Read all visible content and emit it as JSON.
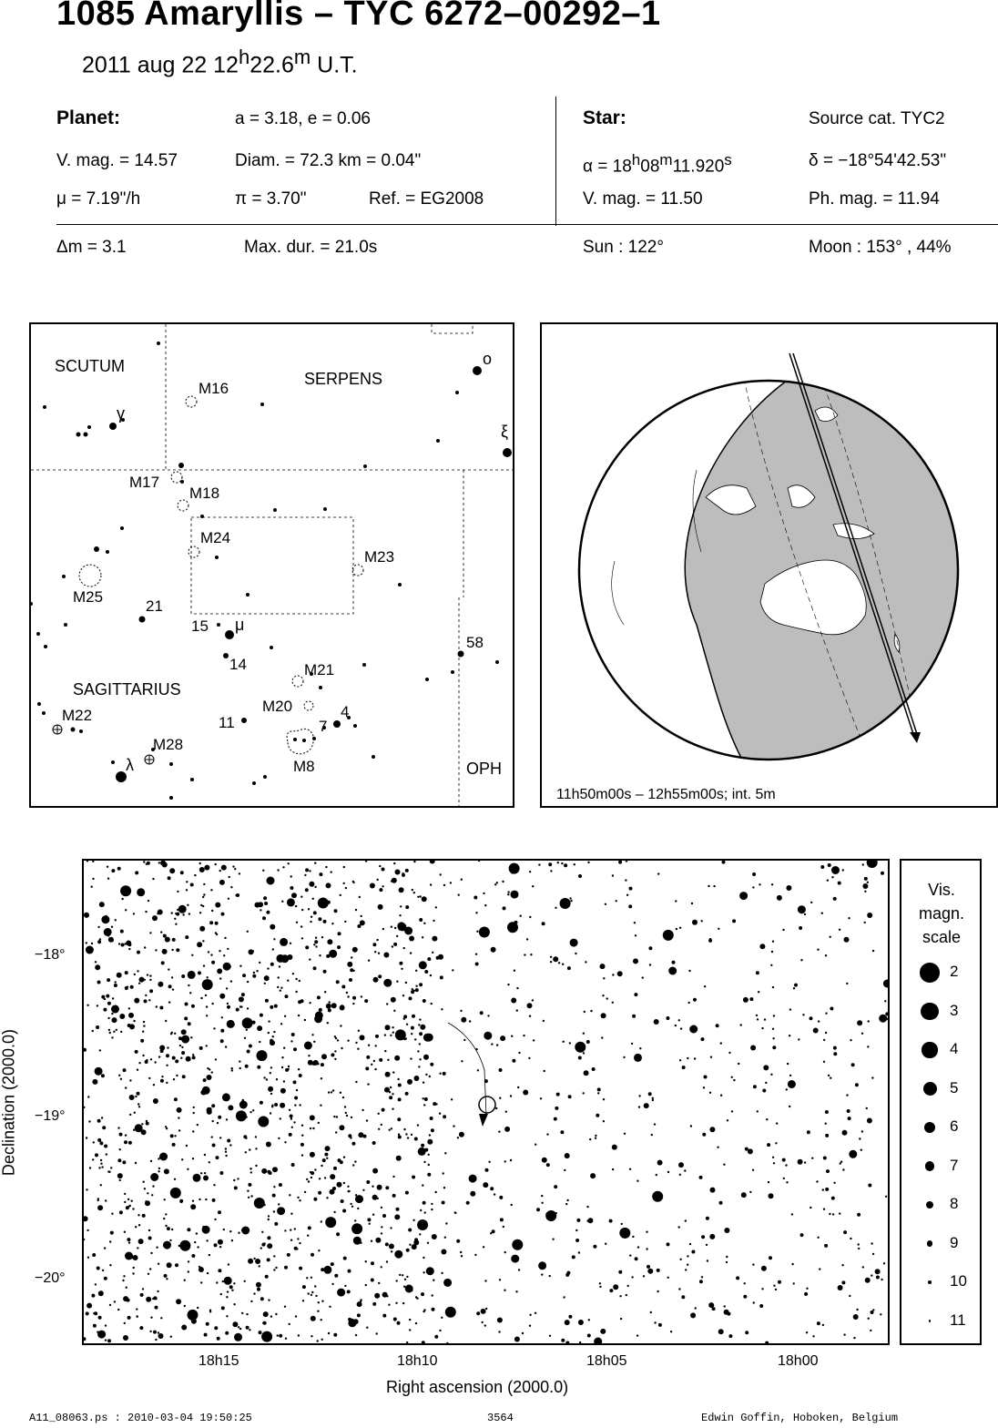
{
  "header": {
    "title": "1085 Amaryllis  –  TYC 6272–00292–1",
    "date": "2011 aug 22  12",
    "hour_sup": "h",
    "minutes": "22.6",
    "min_sup": "m",
    "ut": " U.T."
  },
  "planet": {
    "heading": "Planet:",
    "orbit": "a = 3.18, e = 0.06",
    "vmag": "V. mag. = 14.57",
    "diam": "Diam. = 72.3 km = 0.04\"",
    "mu": "μ =  7.19\"/h",
    "pi": "π =  3.70\"",
    "ref": "Ref. = EG2008"
  },
  "star": {
    "heading": "Star:",
    "source": "Source cat.  TYC2",
    "ra_prefix": "α = 18",
    "ra_h": "h",
    "ra_min": "08",
    "ra_m": "m",
    "ra_sec": "11.920",
    "ra_s": "s",
    "dec": "δ = −18°54'42.53\"",
    "vmag": "V. mag. = 11.50",
    "phmag": "Ph. mag. = 11.94"
  },
  "event": {
    "dm": "Δm = 3.1",
    "maxdur": "Max. dur. = 21.0s",
    "sun": "Sun : 122°",
    "moon": "Moon : 153° , 44%"
  },
  "finder_map": {
    "constellations": [
      "SCUTUM",
      "SERPENS",
      "SAGITTARIUS",
      "OPH"
    ],
    "objects": [
      "M16",
      "M17",
      "M18",
      "M24",
      "M23",
      "M25",
      "M21",
      "M20",
      "M22",
      "M28",
      "M8"
    ],
    "numbers": [
      "21",
      "15",
      "14",
      "58",
      "11",
      "4",
      "7"
    ],
    "greek": [
      "γ",
      "ο",
      "ξ",
      "μ",
      "λ"
    ]
  },
  "globe": {
    "caption": "11h50m00s – 12h55m00s; int.  5m"
  },
  "star_chart": {
    "y_label": "Declination (2000.0)",
    "x_label": "Right ascension (2000.0)",
    "y_ticks": [
      "−18°",
      "−19°",
      "−20°"
    ],
    "x_ticks": [
      "18h15",
      "18h10",
      "18h05",
      "18h00"
    ]
  },
  "legend": {
    "title_lines": [
      "Vis.",
      "magn.",
      "scale"
    ],
    "mags": [
      "2",
      "3",
      "4",
      "5",
      "6",
      "7",
      "8",
      "9",
      "10",
      "11"
    ]
  },
  "footer": {
    "file": "A11_08063.ps : 2010-03-04 19:50:25",
    "number": "3564",
    "author": "Edwin Goffin, Hoboken, Belgium"
  }
}
